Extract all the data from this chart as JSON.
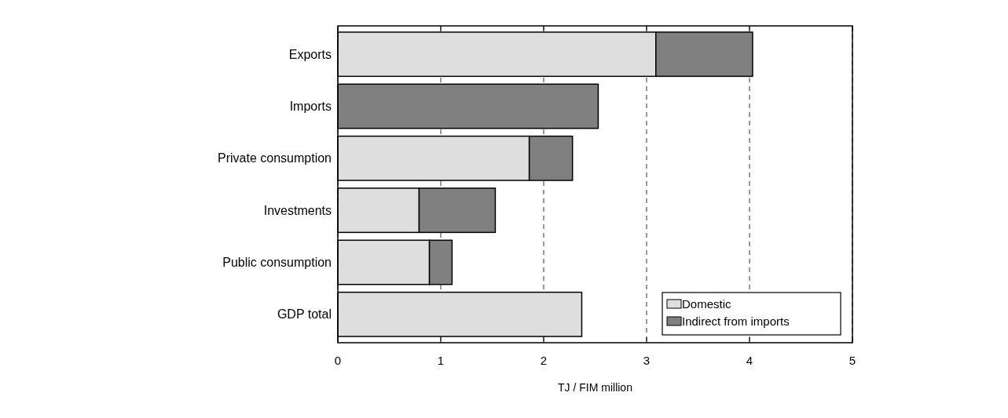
{
  "chart_data": {
    "type": "bar",
    "orientation": "horizontal",
    "stacked": true,
    "xlabel": "TJ / FIM million",
    "categories": [
      "Exports",
      "Imports",
      "Private consumption",
      "Investments",
      "Public consumption",
      "GDP total"
    ],
    "series": [
      {
        "name": "Domestic",
        "color": "#dedede",
        "values": [
          3.09,
          0,
          1.86,
          0.79,
          0.89,
          2.37
        ]
      },
      {
        "name": "Indirect from imports",
        "color": "#808080",
        "values": [
          0.94,
          2.53,
          0.42,
          0.74,
          0.22,
          0
        ]
      }
    ],
    "xlim": [
      0,
      5
    ],
    "xticks": [
      0,
      1,
      2,
      3,
      4,
      5
    ],
    "grid": "x",
    "legend": "bottom right"
  }
}
